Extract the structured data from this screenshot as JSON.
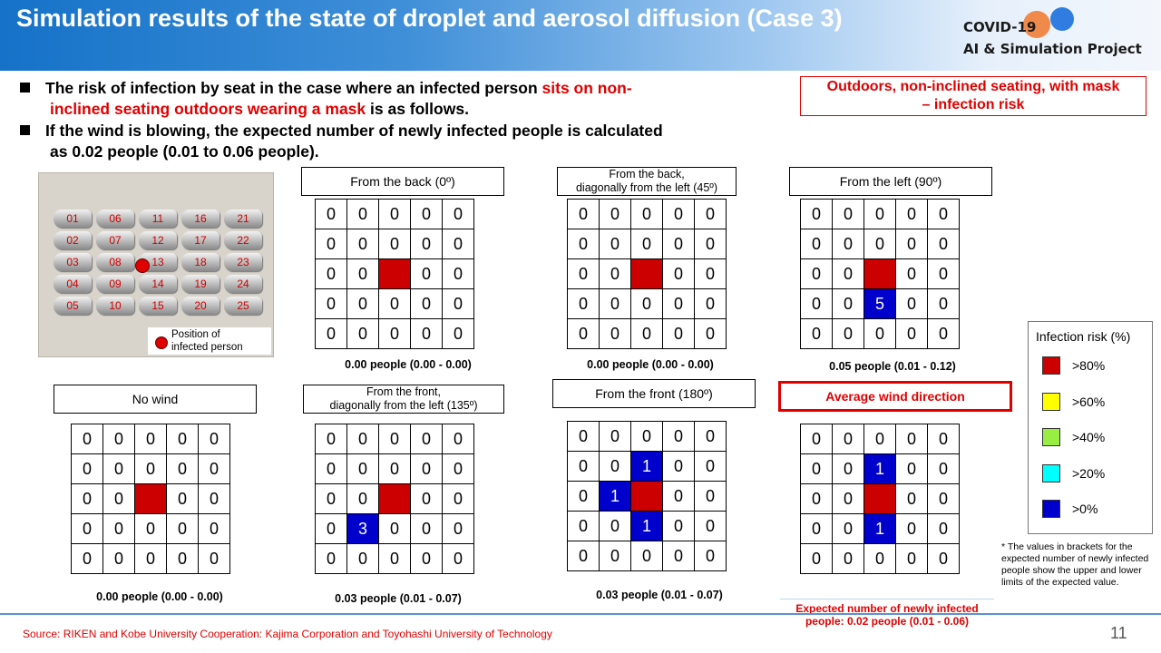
{
  "header": {
    "title": "Simulation results of the state of droplet and aerosol diffusion (Case 3)",
    "logo_line1": "COVID-19",
    "logo_line2": "AI & Simulation Project"
  },
  "bullets": {
    "b1_part1": "The risk of infection by seat in the case where an infected person ",
    "b1_red1": "sits on non-",
    "b1_red2": "inclined seating outdoors wearing a mask",
    "b1_part2": " is as follows.",
    "b2_line1": "If the wind is blowing, the expected number of newly infected people is calculated",
    "b2_line2": "as 0.02 people (0.01 to 0.06 people)."
  },
  "case_box": {
    "line1": "Outdoors, non-inclined seating, with mask",
    "line2": "– infection risk"
  },
  "seatmap": {
    "seat_numbers": [
      "01",
      "06",
      "11",
      "16",
      "21",
      "02",
      "07",
      "12",
      "17",
      "22",
      "03",
      "08",
      "13",
      "18",
      "23",
      "04",
      "09",
      "14",
      "19",
      "24",
      "05",
      "10",
      "15",
      "20",
      "25"
    ],
    "legend_line1": "Position of",
    "legend_line2": "infected person"
  },
  "panels": {
    "back0": {
      "label": "From the back (0º)",
      "caption": "0.00 people (0.00 - 0.00)",
      "cells": [
        [
          "0",
          "0",
          "0",
          "0",
          "0"
        ],
        [
          "0",
          "0",
          "0",
          "0",
          "0"
        ],
        [
          "0",
          "0",
          "",
          "0",
          "0"
        ],
        [
          "0",
          "0",
          "0",
          "0",
          "0"
        ],
        [
          "0",
          "0",
          "0",
          "0",
          "0"
        ]
      ]
    },
    "back45": {
      "label1": "From the back,",
      "label2": "diagonally from the left (45º)",
      "caption": "0.00 people (0.00 - 0.00)",
      "cells": [
        [
          "0",
          "0",
          "0",
          "0",
          "0"
        ],
        [
          "0",
          "0",
          "0",
          "0",
          "0"
        ],
        [
          "0",
          "0",
          "",
          "0",
          "0"
        ],
        [
          "0",
          "0",
          "0",
          "0",
          "0"
        ],
        [
          "0",
          "0",
          "0",
          "0",
          "0"
        ]
      ]
    },
    "left90": {
      "label": "From the left (90º)",
      "caption": "0.05 people (0.01 - 0.12)",
      "cells": [
        [
          "0",
          "0",
          "0",
          "0",
          "0"
        ],
        [
          "0",
          "0",
          "0",
          "0",
          "0"
        ],
        [
          "0",
          "0",
          "",
          "0",
          "0"
        ],
        [
          "0",
          "0",
          "5",
          "0",
          "0"
        ],
        [
          "0",
          "0",
          "0",
          "0",
          "0"
        ]
      ]
    },
    "nowind": {
      "label": "No wind",
      "caption": "0.00 people (0.00 - 0.00)",
      "cells": [
        [
          "0",
          "0",
          "0",
          "0",
          "0"
        ],
        [
          "0",
          "0",
          "0",
          "0",
          "0"
        ],
        [
          "0",
          "0",
          "",
          "0",
          "0"
        ],
        [
          "0",
          "0",
          "0",
          "0",
          "0"
        ],
        [
          "0",
          "0",
          "0",
          "0",
          "0"
        ]
      ]
    },
    "front135": {
      "label1": "From the front,",
      "label2": "diagonally from the left (135º)",
      "caption": "0.03 people (0.01 - 0.07)",
      "cells": [
        [
          "0",
          "0",
          "0",
          "0",
          "0"
        ],
        [
          "0",
          "0",
          "0",
          "0",
          "0"
        ],
        [
          "0",
          "0",
          "",
          "0",
          "0"
        ],
        [
          "0",
          "3",
          "0",
          "0",
          "0"
        ],
        [
          "0",
          "0",
          "0",
          "0",
          "0"
        ]
      ]
    },
    "front180": {
      "label": "From the front (180º)",
      "caption": "0.03 people (0.01 - 0.07)",
      "cells": [
        [
          "0",
          "0",
          "0",
          "0",
          "0"
        ],
        [
          "0",
          "0",
          "1",
          "0",
          "0"
        ],
        [
          "0",
          "1",
          "",
          "0",
          "0"
        ],
        [
          "0",
          "0",
          "1",
          "0",
          "0"
        ],
        [
          "0",
          "0",
          "0",
          "0",
          "0"
        ]
      ]
    },
    "average": {
      "label": "Average wind direction",
      "caption_line1": "Expected number of newly infected",
      "caption_line2": "people: 0.02 people (0.01 - 0.06)",
      "cells": [
        [
          "0",
          "0",
          "0",
          "0",
          "0"
        ],
        [
          "0",
          "0",
          "1",
          "0",
          "0"
        ],
        [
          "0",
          "0",
          "",
          "0",
          "0"
        ],
        [
          "0",
          "0",
          "1",
          "0",
          "0"
        ],
        [
          "0",
          "0",
          "0",
          "0",
          "0"
        ]
      ]
    }
  },
  "risk_legend": {
    "title": "Infection risk (%)",
    "items": [
      {
        "label": ">80%",
        "color": "#cc0000"
      },
      {
        "label": ">60%",
        "color": "#ffff00"
      },
      {
        "label": ">40%",
        "color": "#99ee44"
      },
      {
        "label": ">20%",
        "color": "#00ffff"
      },
      {
        "label": ">0%",
        "color": "#0000cc"
      }
    ]
  },
  "note": "* The values in brackets for the expected number of newly infected people show the upper and lower limits of the expected value.",
  "footer": {
    "source": "Source: RIKEN and Kobe University Cooperation: Kajima Corporation and Toyohashi University of Technology",
    "page": "11"
  }
}
